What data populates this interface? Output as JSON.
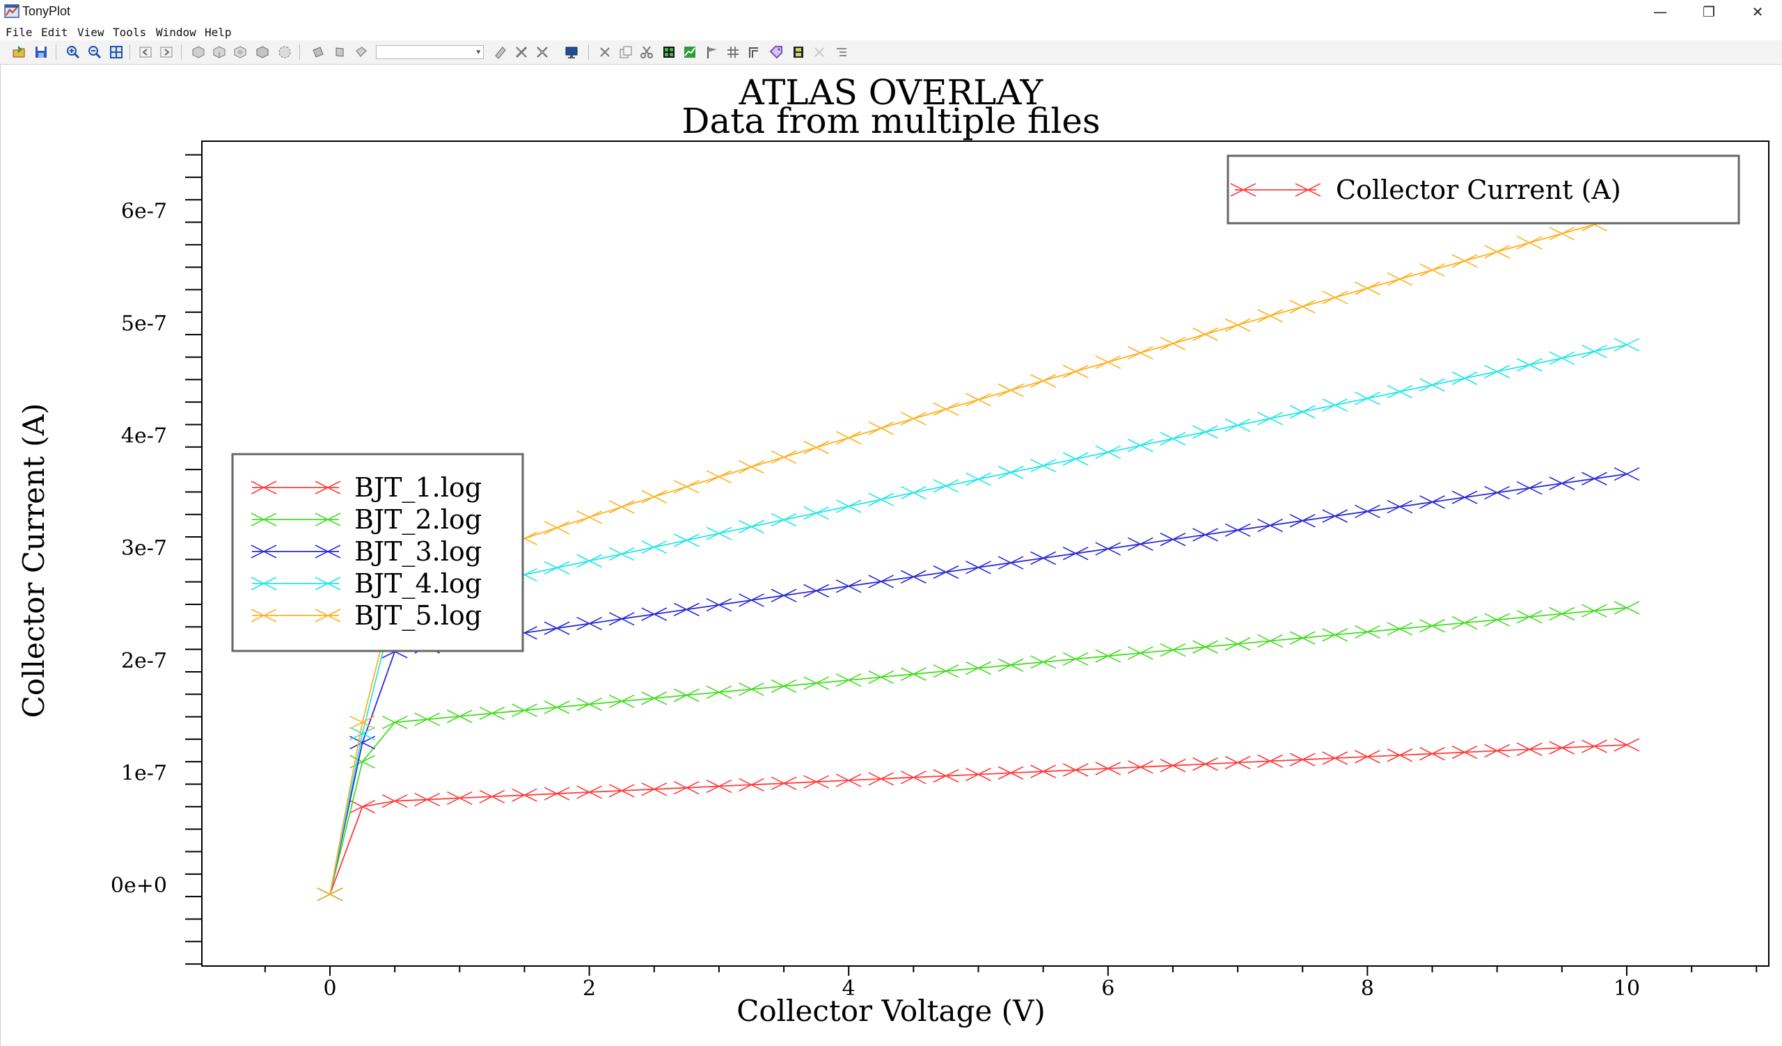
{
  "window": {
    "title": "TonyPlot",
    "minimize_glyph": "—",
    "maximize_glyph": "❐",
    "close_glyph": "✕"
  },
  "menu": {
    "items": [
      "File",
      "Edit",
      "View",
      "Tools",
      "Window",
      "Help"
    ]
  },
  "toolbar": {
    "icons": [
      "open-icon",
      "save-icon",
      "zoom-in-icon",
      "zoom-out-icon",
      "zoom-fit-icon",
      "back-icon",
      "forward-icon",
      "view-3d-1-icon",
      "view-3d-2-icon",
      "view-3d-3-icon",
      "view-3d-4-icon",
      "view-3d-5-icon",
      "rotate-1-icon",
      "rotate-2-icon",
      "rotate-3-icon",
      "probe-icon",
      "ruler-icon",
      "cutline-icon",
      "display-icon",
      "cut-icon",
      "copy-icon",
      "scissors-icon",
      "table-icon",
      "graph-icon",
      "flag-icon",
      "grid-icon",
      "frame-icon",
      "tag-icon",
      "film-icon",
      "disabled-icon",
      "list-icon"
    ],
    "combo_value": ""
  },
  "chart_data": {
    "type": "line",
    "title": "ATLAS OVERLAY",
    "subtitle": "Data from multiple files",
    "xlabel": "Collector Voltage (V)",
    "ylabel": "Collector Current (A)",
    "xlim": [
      -1,
      11
    ],
    "ylim": [
      -7e-08,
      6.6e-07
    ],
    "x_ticks": [
      0,
      2,
      4,
      6,
      8,
      10
    ],
    "x_tick_labels": [
      "0",
      "2",
      "4",
      "6",
      "8",
      "10"
    ],
    "y_ticks": [
      0,
      1e-07,
      2e-07,
      3e-07,
      4e-07,
      5e-07,
      6e-07
    ],
    "y_tick_labels": [
      "0e+0",
      "1e-7",
      "2e-7",
      "3e-7",
      "4e-7",
      "5e-7",
      "6e-7"
    ],
    "grid": false,
    "quantity_legend": {
      "label": "Collector Current (A)",
      "color": "#ff3b3b",
      "position": "top-right"
    },
    "file_legend_position": "middle-left",
    "series": [
      {
        "name": "BJT_1.log",
        "color": "#ff3b3b",
        "start": -8e-09,
        "knee": [
          0.25,
          7e-08
        ],
        "mid": [
          0.5,
          7.5e-08
        ],
        "end": 1.25e-07,
        "shape": 1.0
      },
      {
        "name": "BJT_2.log",
        "color": "#44dd22",
        "start": -8e-09,
        "knee": [
          0.25,
          1.1e-07
        ],
        "mid": [
          0.5,
          1.45e-07
        ],
        "end": 2.47e-07,
        "shape": 1.0
      },
      {
        "name": "BJT_3.log",
        "color": "#2a2ad8",
        "start": -8e-09,
        "knee": [
          0.25,
          1.27e-07
        ],
        "mid": [
          0.5,
          2.08e-07
        ],
        "end": 3.66e-07,
        "shape": 1.0
      },
      {
        "name": "BJT_4.log",
        "color": "#22e6e6",
        "start": -8e-09,
        "knee": [
          0.25,
          1.35e-07
        ],
        "mid": [
          0.5,
          2.5e-07
        ],
        "end": 4.81e-07,
        "shape": 0.96
      },
      {
        "name": "BJT_5.log",
        "color": "#ffb020",
        "start": -8e-09,
        "knee": [
          0.25,
          1.45e-07
        ],
        "mid": [
          0.5,
          2.6e-07
        ],
        "end": 5.96e-07,
        "shape": 0.82
      }
    ]
  }
}
